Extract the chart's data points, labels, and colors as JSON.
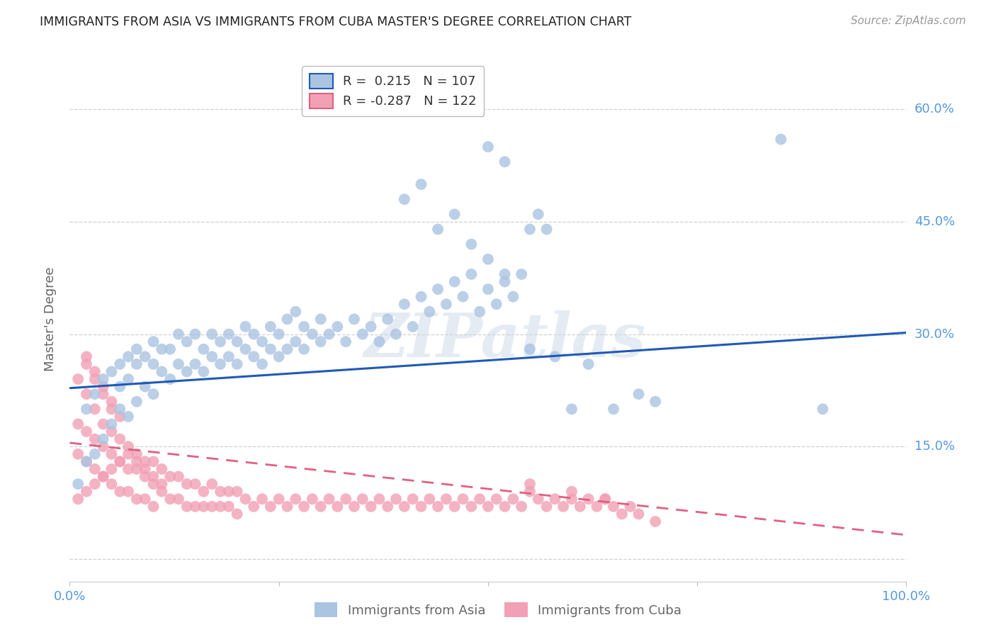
{
  "title": "IMMIGRANTS FROM ASIA VS IMMIGRANTS FROM CUBA MASTER'S DEGREE CORRELATION CHART",
  "source": "Source: ZipAtlas.com",
  "ylabel": "Master's Degree",
  "xlim": [
    0.0,
    1.0
  ],
  "ylim": [
    -0.03,
    0.67
  ],
  "yticks": [
    0.0,
    0.15,
    0.3,
    0.45,
    0.6
  ],
  "ytick_labels": [
    "",
    "15.0%",
    "30.0%",
    "45.0%",
    "60.0%"
  ],
  "asia_color": "#aac4e2",
  "cuba_color": "#f2a0b5",
  "asia_line_color": "#1f5ab5",
  "cuba_line_color": "#e06080",
  "asia_R": "0.215",
  "asia_N": "107",
  "cuba_R": "-0.287",
  "cuba_N": "122",
  "asia_scatter_x": [
    0.01,
    0.02,
    0.02,
    0.03,
    0.03,
    0.04,
    0.04,
    0.05,
    0.05,
    0.06,
    0.06,
    0.06,
    0.07,
    0.07,
    0.07,
    0.08,
    0.08,
    0.08,
    0.09,
    0.09,
    0.1,
    0.1,
    0.1,
    0.11,
    0.11,
    0.12,
    0.12,
    0.13,
    0.13,
    0.14,
    0.14,
    0.15,
    0.15,
    0.16,
    0.16,
    0.17,
    0.17,
    0.18,
    0.18,
    0.19,
    0.19,
    0.2,
    0.2,
    0.21,
    0.21,
    0.22,
    0.22,
    0.23,
    0.23,
    0.24,
    0.24,
    0.25,
    0.25,
    0.26,
    0.26,
    0.27,
    0.27,
    0.28,
    0.28,
    0.29,
    0.3,
    0.3,
    0.31,
    0.32,
    0.33,
    0.34,
    0.35,
    0.36,
    0.37,
    0.38,
    0.39,
    0.4,
    0.41,
    0.42,
    0.43,
    0.44,
    0.45,
    0.46,
    0.47,
    0.48,
    0.49,
    0.5,
    0.51,
    0.52,
    0.53,
    0.54,
    0.55,
    0.56,
    0.57,
    0.6,
    0.65,
    0.7,
    0.85,
    0.4,
    0.42,
    0.44,
    0.46,
    0.48,
    0.5,
    0.52,
    0.55,
    0.58,
    0.62,
    0.68,
    0.9,
    0.5,
    0.52
  ],
  "asia_scatter_y": [
    0.1,
    0.13,
    0.2,
    0.14,
    0.22,
    0.16,
    0.24,
    0.18,
    0.25,
    0.2,
    0.23,
    0.26,
    0.19,
    0.24,
    0.27,
    0.21,
    0.26,
    0.28,
    0.23,
    0.27,
    0.22,
    0.26,
    0.29,
    0.25,
    0.28,
    0.24,
    0.28,
    0.26,
    0.3,
    0.25,
    0.29,
    0.26,
    0.3,
    0.25,
    0.28,
    0.27,
    0.3,
    0.26,
    0.29,
    0.27,
    0.3,
    0.26,
    0.29,
    0.28,
    0.31,
    0.27,
    0.3,
    0.26,
    0.29,
    0.28,
    0.31,
    0.27,
    0.3,
    0.28,
    0.32,
    0.29,
    0.33,
    0.28,
    0.31,
    0.3,
    0.29,
    0.32,
    0.3,
    0.31,
    0.29,
    0.32,
    0.3,
    0.31,
    0.29,
    0.32,
    0.3,
    0.34,
    0.31,
    0.35,
    0.33,
    0.36,
    0.34,
    0.37,
    0.35,
    0.38,
    0.33,
    0.36,
    0.34,
    0.37,
    0.35,
    0.38,
    0.44,
    0.46,
    0.44,
    0.2,
    0.2,
    0.21,
    0.56,
    0.48,
    0.5,
    0.44,
    0.46,
    0.42,
    0.4,
    0.38,
    0.28,
    0.27,
    0.26,
    0.22,
    0.2,
    0.55,
    0.53
  ],
  "cuba_scatter_x": [
    0.01,
    0.01,
    0.01,
    0.02,
    0.02,
    0.02,
    0.02,
    0.03,
    0.03,
    0.03,
    0.03,
    0.04,
    0.04,
    0.04,
    0.04,
    0.05,
    0.05,
    0.05,
    0.05,
    0.06,
    0.06,
    0.06,
    0.07,
    0.07,
    0.07,
    0.08,
    0.08,
    0.08,
    0.09,
    0.09,
    0.09,
    0.1,
    0.1,
    0.1,
    0.11,
    0.11,
    0.12,
    0.12,
    0.13,
    0.13,
    0.14,
    0.14,
    0.15,
    0.15,
    0.16,
    0.16,
    0.17,
    0.17,
    0.18,
    0.18,
    0.19,
    0.19,
    0.2,
    0.2,
    0.21,
    0.22,
    0.23,
    0.24,
    0.25,
    0.26,
    0.27,
    0.28,
    0.29,
    0.3,
    0.31,
    0.32,
    0.33,
    0.34,
    0.35,
    0.36,
    0.37,
    0.38,
    0.39,
    0.4,
    0.41,
    0.42,
    0.43,
    0.44,
    0.45,
    0.46,
    0.47,
    0.48,
    0.49,
    0.5,
    0.51,
    0.52,
    0.53,
    0.54,
    0.55,
    0.56,
    0.57,
    0.58,
    0.59,
    0.6,
    0.61,
    0.62,
    0.63,
    0.64,
    0.65,
    0.66,
    0.68,
    0.7,
    0.02,
    0.03,
    0.04,
    0.05,
    0.06,
    0.55,
    0.6,
    0.64,
    0.67,
    0.01,
    0.02,
    0.03,
    0.04,
    0.05,
    0.06,
    0.07,
    0.08,
    0.09,
    0.1,
    0.11
  ],
  "cuba_scatter_y": [
    0.14,
    0.18,
    0.24,
    0.13,
    0.17,
    0.22,
    0.26,
    0.12,
    0.16,
    0.2,
    0.24,
    0.11,
    0.15,
    0.18,
    0.22,
    0.1,
    0.14,
    0.17,
    0.2,
    0.09,
    0.13,
    0.16,
    0.09,
    0.12,
    0.15,
    0.08,
    0.12,
    0.14,
    0.08,
    0.11,
    0.13,
    0.07,
    0.1,
    0.13,
    0.09,
    0.12,
    0.08,
    0.11,
    0.08,
    0.11,
    0.07,
    0.1,
    0.07,
    0.1,
    0.07,
    0.09,
    0.07,
    0.1,
    0.07,
    0.09,
    0.07,
    0.09,
    0.06,
    0.09,
    0.08,
    0.07,
    0.08,
    0.07,
    0.08,
    0.07,
    0.08,
    0.07,
    0.08,
    0.07,
    0.08,
    0.07,
    0.08,
    0.07,
    0.08,
    0.07,
    0.08,
    0.07,
    0.08,
    0.07,
    0.08,
    0.07,
    0.08,
    0.07,
    0.08,
    0.07,
    0.08,
    0.07,
    0.08,
    0.07,
    0.08,
    0.07,
    0.08,
    0.07,
    0.09,
    0.08,
    0.07,
    0.08,
    0.07,
    0.08,
    0.07,
    0.08,
    0.07,
    0.08,
    0.07,
    0.06,
    0.06,
    0.05,
    0.27,
    0.25,
    0.23,
    0.21,
    0.19,
    0.1,
    0.09,
    0.08,
    0.07,
    0.08,
    0.09,
    0.1,
    0.11,
    0.12,
    0.13,
    0.14,
    0.13,
    0.12,
    0.11,
    0.1
  ],
  "asia_trend_x": [
    0.0,
    1.0
  ],
  "asia_trend_y": [
    0.228,
    0.302
  ],
  "cuba_trend_x": [
    0.0,
    1.0
  ],
  "cuba_trend_y": [
    0.155,
    0.032
  ],
  "watermark_text": "ZIPatlas",
  "background_color": "#ffffff",
  "grid_color": "#d0d0d0",
  "title_color": "#222222",
  "axis_label_color": "#666666",
  "tick_label_color": "#5599dd",
  "source_color": "#999999"
}
